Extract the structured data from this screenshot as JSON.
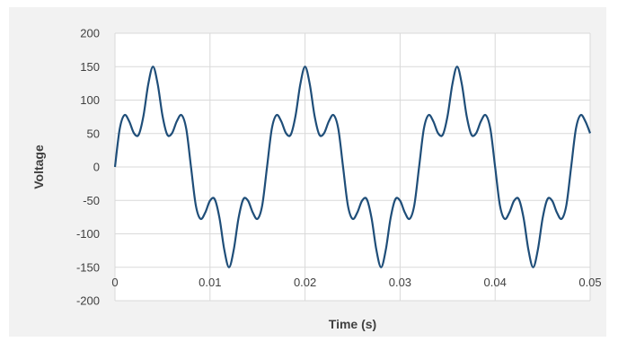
{
  "chart_data": {
    "type": "line",
    "title": "",
    "xlabel": "Time (s)",
    "ylabel": "Voltage",
    "xlim": [
      0,
      0.05
    ],
    "ylim": [
      -200,
      200
    ],
    "x_ticks": [
      0,
      0.01,
      0.02,
      0.03,
      0.04,
      0.05
    ],
    "x_tick_labels": [
      "0",
      "0.01",
      "0.02",
      "0.03",
      "0.04",
      "0.05"
    ],
    "y_ticks": [
      200,
      150,
      100,
      50,
      0,
      -50,
      -100,
      -150,
      -200
    ],
    "y_tick_labels": [
      "200",
      "150",
      "100",
      "50",
      "0",
      "-50",
      "-100",
      "-150",
      "-200"
    ],
    "grid": true,
    "legend": "none",
    "series": [
      {
        "color": "#1f4e79",
        "x": [
          0,
          0.0005,
          0.001,
          0.0015,
          0.002,
          0.0025,
          0.003,
          0.0035,
          0.004,
          0.0045,
          0.005,
          0.0055,
          0.006,
          0.0065,
          0.007,
          0.0075,
          0.008,
          0.0085,
          0.009,
          0.0095,
          0.01,
          0.0105,
          0.011,
          0.0115,
          0.012,
          0.0125,
          0.013,
          0.0135,
          0.014,
          0.0145,
          0.015,
          0.0155,
          0.016,
          0.0165,
          0.017,
          0.0175,
          0.018,
          0.0185,
          0.019,
          0.0195,
          0.02,
          0.0205,
          0.021,
          0.0215,
          0.022,
          0.0225,
          0.023,
          0.0235,
          0.024,
          0.0245,
          0.025,
          0.0255,
          0.026,
          0.0265,
          0.027,
          0.0275,
          0.028,
          0.0285,
          0.029,
          0.0295,
          0.03,
          0.0305,
          0.031,
          0.0315,
          0.032,
          0.0325,
          0.033,
          0.0335,
          0.034,
          0.0345,
          0.035,
          0.0355,
          0.036,
          0.0365,
          0.037,
          0.0375,
          0.038,
          0.0385,
          0.039,
          0.0395,
          0.04,
          0.0405,
          0.041,
          0.0415,
          0.042,
          0.0425,
          0.043,
          0.0435,
          0.044,
          0.0445,
          0.045,
          0.0455,
          0.046,
          0.0465,
          0.047,
          0.0475,
          0.048,
          0.0485,
          0.049,
          0.0495,
          0.05
        ],
        "y": [
          0,
          56.9,
          77.6,
          68.1,
          50.4,
          48.4,
          76.6,
          123.6,
          150,
          123.6,
          76.6,
          48.4,
          50.4,
          68.1,
          77.6,
          56.9,
          0,
          -56.9,
          -77.6,
          -68.1,
          -50.4,
          -48.4,
          -76.6,
          -123.6,
          -150,
          -123.6,
          -76.6,
          -48.4,
          -50.4,
          -68.1,
          -77.6,
          -56.9,
          0,
          56.9,
          77.6,
          68.1,
          50.4,
          48.4,
          76.6,
          123.6,
          150,
          123.6,
          76.6,
          48.4,
          50.4,
          68.1,
          77.6,
          56.9,
          0,
          -56.9,
          -77.6,
          -68.1,
          -50.4,
          -48.4,
          -76.6,
          -123.6,
          -150,
          -123.6,
          -76.6,
          -48.4,
          -50.4,
          -68.1,
          -77.6,
          -56.9,
          0,
          56.9,
          77.6,
          68.1,
          50.4,
          48.4,
          76.6,
          123.6,
          150,
          123.6,
          76.6,
          48.4,
          50.4,
          68.1,
          77.6,
          56.9,
          0,
          -56.9,
          -77.6,
          -68.1,
          -50.4,
          -48.4,
          -76.6,
          -123.6,
          -150,
          -123.6,
          -76.6,
          -48.4,
          -50.4,
          -68.1,
          -77.6,
          -56.9,
          0,
          56.9,
          77.6,
          68.1,
          50.4
        ]
      }
    ]
  },
  "colors": {
    "background": "#f2f2f2",
    "plot_area": "#ffffff",
    "grid": "#d9d9d9",
    "series": "#1f4e79",
    "text": "#404040"
  }
}
